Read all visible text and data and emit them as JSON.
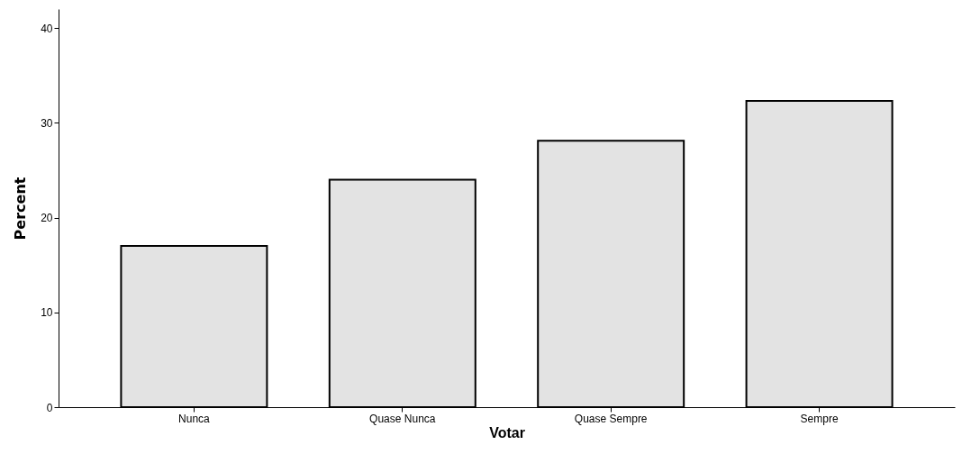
{
  "chart_data": {
    "type": "bar",
    "xlabel": "Votar",
    "ylabel": "Percent",
    "categories": [
      "Nunca",
      "Quase Nunca",
      "Quase Sempre",
      "Sempre"
    ],
    "values": [
      17.0,
      24.0,
      28.1,
      32.3
    ],
    "color": "#e3e3e3",
    "ylim": [
      0,
      42
    ],
    "yticks": [
      0,
      10,
      20,
      30,
      40
    ],
    "grid": false
  }
}
